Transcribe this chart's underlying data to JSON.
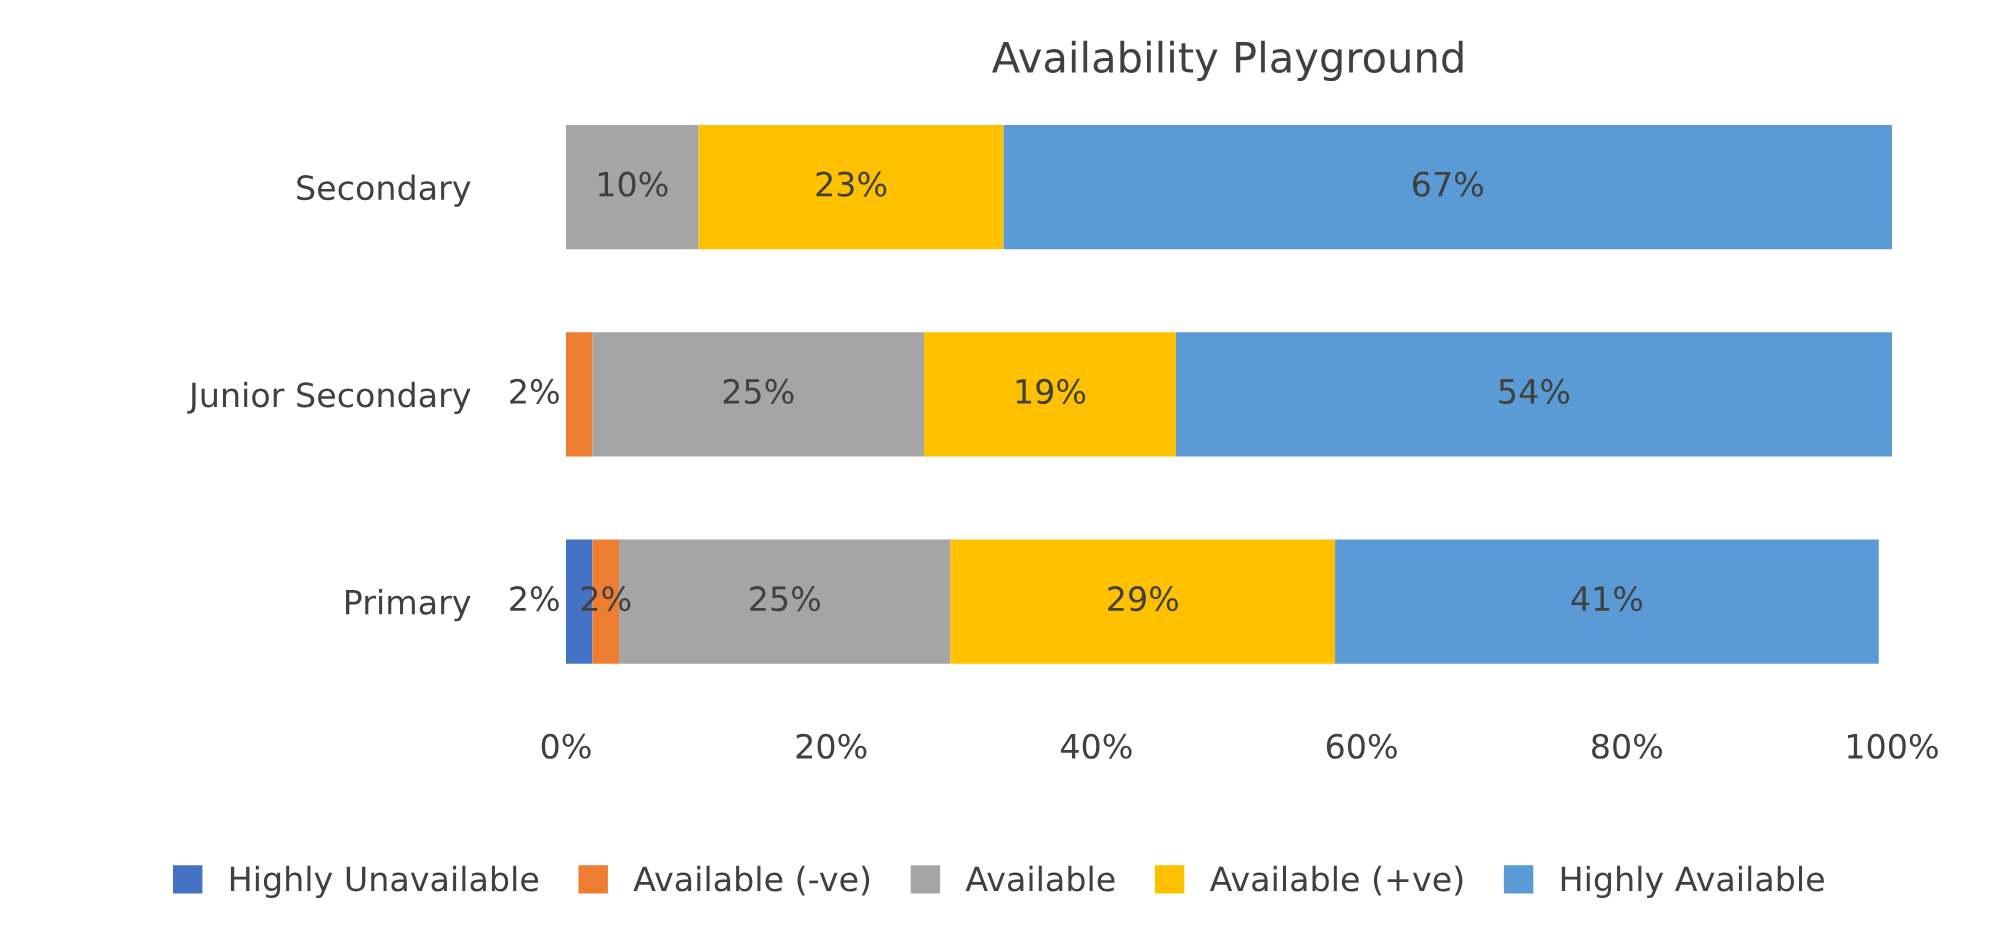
{
  "chart_data": {
    "type": "bar",
    "orientation": "horizontal",
    "stacked": true,
    "title": "Availability Playground",
    "categories": [
      "Secondary",
      "Junior Secondary",
      "Primary"
    ],
    "series": [
      {
        "name": "Highly Unavailable",
        "color": "#4472c4",
        "values": [
          0,
          0,
          2
        ],
        "value_labels": [
          null,
          null,
          "2%"
        ]
      },
      {
        "name": "Available (-ve)",
        "color": "#ed7d31",
        "values": [
          0,
          2,
          2
        ],
        "value_labels": [
          null,
          "2%",
          "2%"
        ]
      },
      {
        "name": "Available",
        "color": "#a5a5a5",
        "values": [
          10,
          25,
          25
        ],
        "value_labels": [
          "10%",
          "25%",
          "25%"
        ]
      },
      {
        "name": "Available (+ve)",
        "color": "#ffc000",
        "values": [
          23,
          19,
          29
        ],
        "value_labels": [
          "23%",
          "19%",
          "29%"
        ]
      },
      {
        "name": "Highly Available",
        "color": "#5b9bd5",
        "values": [
          67,
          54,
          41
        ],
        "value_labels": [
          "67%",
          "54%",
          "41%"
        ]
      }
    ],
    "xlim": [
      0,
      100
    ],
    "xticks": [
      {
        "value": 0,
        "label": "0%"
      },
      {
        "value": 20,
        "label": "20%"
      },
      {
        "value": 40,
        "label": "40%"
      },
      {
        "value": 60,
        "label": "60%"
      },
      {
        "value": 80,
        "label": "80%"
      },
      {
        "value": 100,
        "label": "100%"
      }
    ],
    "grid": false,
    "legend": "bottom"
  }
}
